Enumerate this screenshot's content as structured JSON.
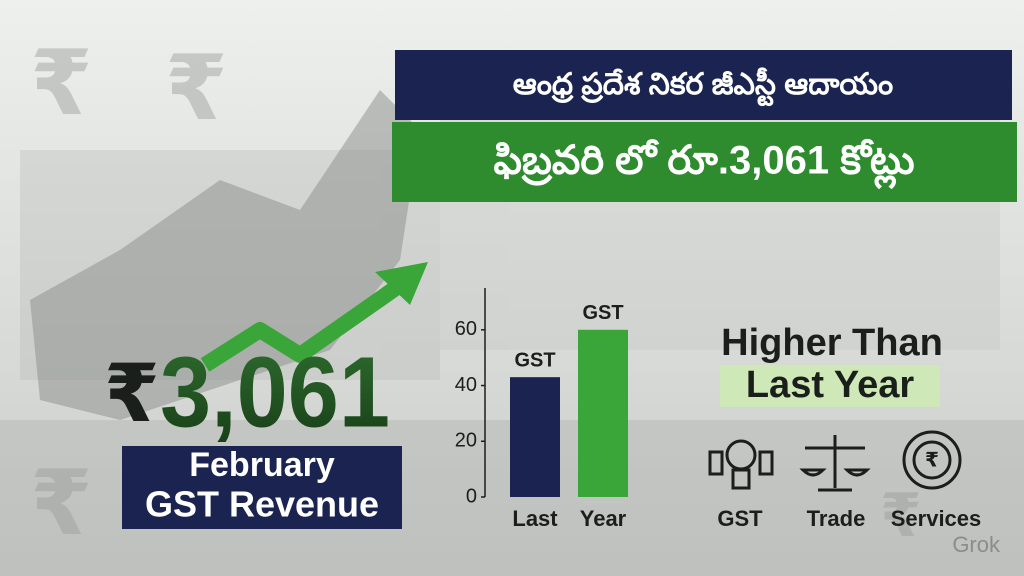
{
  "headline": {
    "line1": "ఆంధ్ర ప్రదేశ నికర జీఎస్టీ ఆదాయం",
    "line2": "ఫిబ్రవరి లో రూ.3,061 కోట్లు"
  },
  "amount": {
    "symbol": "₹",
    "value": "3,061"
  },
  "caption": {
    "line1": "February",
    "line2": "GST Revenue"
  },
  "badge": {
    "line1": "Higher Than",
    "line2": "Last Year"
  },
  "icons": [
    "GST",
    "Trade",
    "Services"
  ],
  "watermark": "Grok",
  "chart_data": {
    "type": "bar",
    "categories": [
      "Last",
      "Year"
    ],
    "values": [
      43,
      60
    ],
    "bar_labels": [
      "GST",
      "GST"
    ],
    "colors": [
      "#1b2450",
      "#3aa63a"
    ],
    "ylim": [
      0,
      75
    ],
    "yticks": [
      0,
      20,
      40,
      60
    ]
  }
}
